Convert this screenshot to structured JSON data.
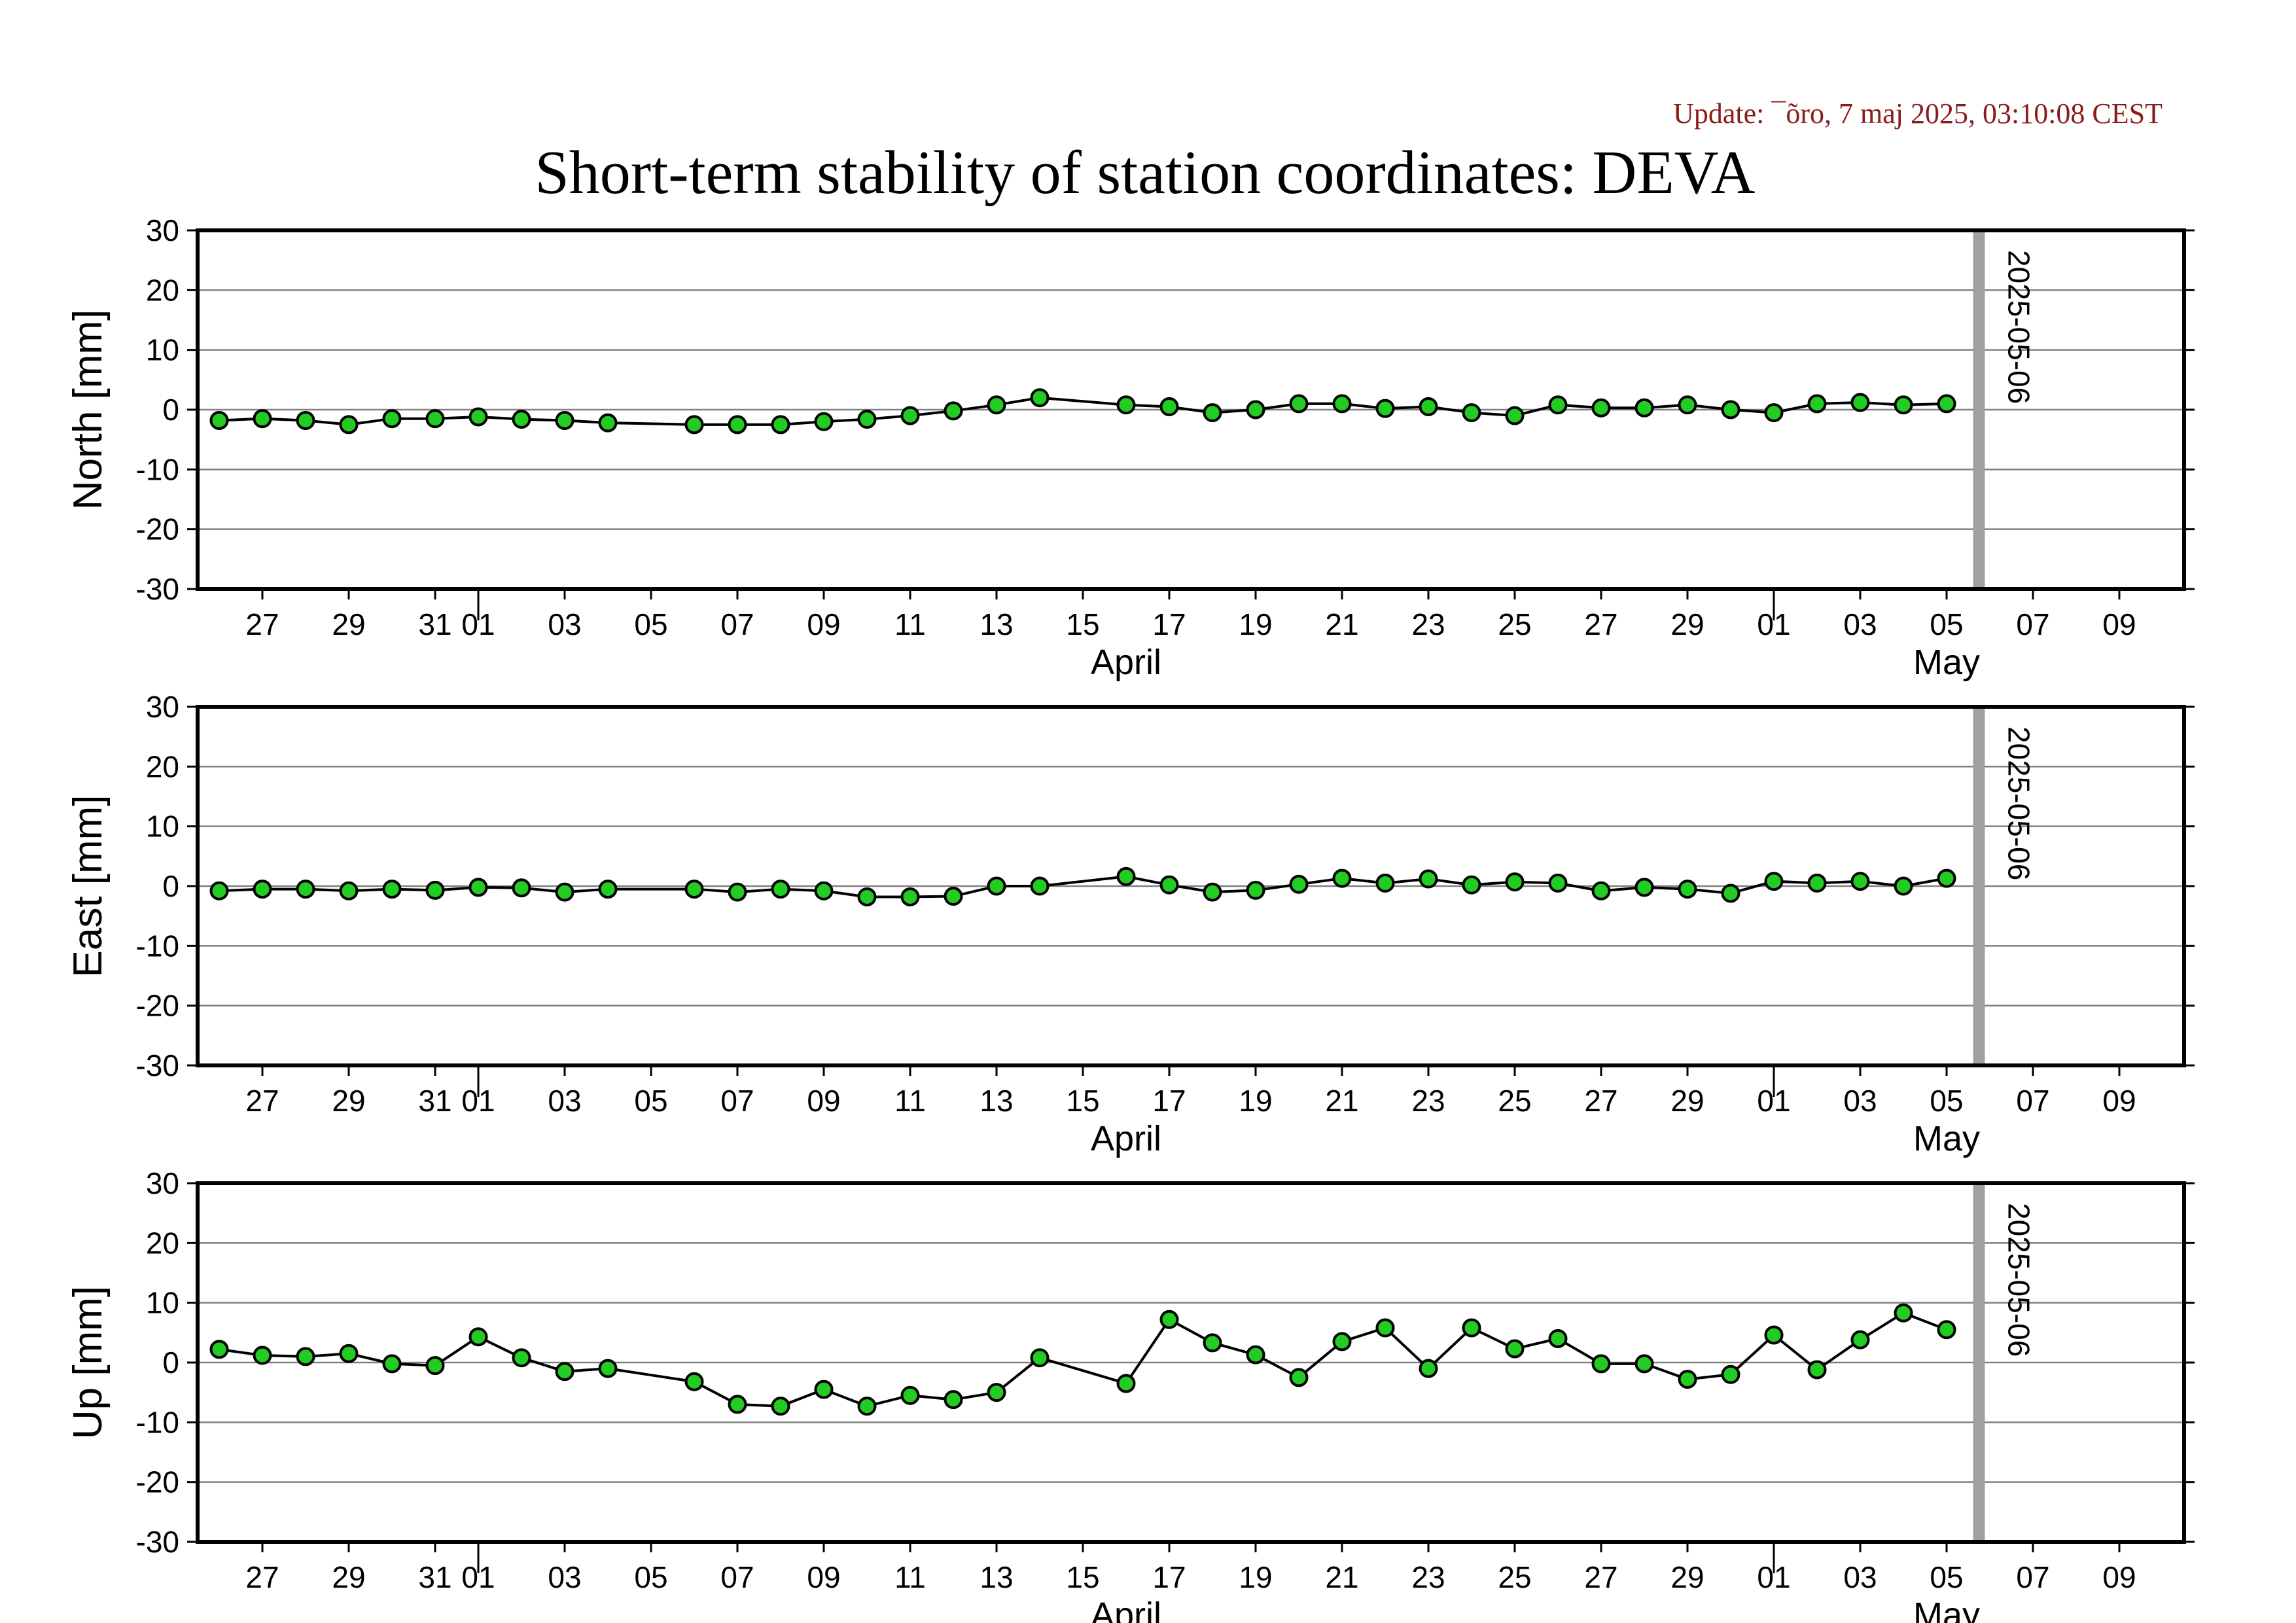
{
  "update_text": "Update: ¯õro, 7 maj 2025, 03:10:08 CEST",
  "chart_data": {
    "type": "line",
    "title": "Short-term stability of station coordinates: DEVA",
    "ylim": [
      -30,
      30
    ],
    "yticks": [
      30,
      20,
      10,
      0,
      -10,
      -20,
      -30
    ],
    "grid": true,
    "x_axis": {
      "tick_labels": [
        {
          "day": "2025-03-27",
          "label": "27"
        },
        {
          "day": "2025-03-29",
          "label": "29"
        },
        {
          "day": "2025-03-31",
          "label": "31"
        },
        {
          "day": "2025-04-01",
          "label": "01"
        },
        {
          "day": "2025-04-03",
          "label": "03"
        },
        {
          "day": "2025-04-05",
          "label": "05"
        },
        {
          "day": "2025-04-07",
          "label": "07"
        },
        {
          "day": "2025-04-09",
          "label": "09"
        },
        {
          "day": "2025-04-11",
          "label": "11"
        },
        {
          "day": "2025-04-13",
          "label": "13"
        },
        {
          "day": "2025-04-15",
          "label": "15"
        },
        {
          "day": "2025-04-17",
          "label": "17"
        },
        {
          "day": "2025-04-19",
          "label": "19"
        },
        {
          "day": "2025-04-21",
          "label": "21"
        },
        {
          "day": "2025-04-23",
          "label": "23"
        },
        {
          "day": "2025-04-25",
          "label": "25"
        },
        {
          "day": "2025-04-27",
          "label": "27"
        },
        {
          "day": "2025-04-29",
          "label": "29"
        },
        {
          "day": "2025-05-01",
          "label": "01"
        },
        {
          "day": "2025-05-03",
          "label": "03"
        },
        {
          "day": "2025-05-05",
          "label": "05"
        },
        {
          "day": "2025-05-07",
          "label": "07"
        },
        {
          "day": "2025-05-09",
          "label": "09"
        }
      ],
      "month_labels": [
        {
          "label": "April",
          "day": "2025-04-16"
        },
        {
          "label": "May",
          "day": "2025-05-05"
        }
      ],
      "range": [
        "2025-03-25T12:00",
        "2025-05-10T12:00"
      ]
    },
    "marker": {
      "label": "2025-05-06",
      "day": "2025-05-05T18:00",
      "color": "#a0a0a0"
    },
    "point_color": "#22cc22",
    "line_color": "#000000",
    "panels": [
      {
        "ylabel": "North [mm]",
        "points": [
          [
            "2025-03-26",
            -1.8
          ],
          [
            "2025-03-27",
            -1.5
          ],
          [
            "2025-03-28",
            -1.8
          ],
          [
            "2025-03-29",
            -2.5
          ],
          [
            "2025-03-30",
            -1.5
          ],
          [
            "2025-03-31",
            -1.5
          ],
          [
            "2025-04-01",
            -1.2
          ],
          [
            "2025-04-02",
            -1.6
          ],
          [
            "2025-04-03",
            -1.8
          ],
          [
            "2025-04-04",
            -2.2
          ],
          [
            "2025-04-06",
            -2.5
          ],
          [
            "2025-04-07",
            -2.5
          ],
          [
            "2025-04-08",
            -2.5
          ],
          [
            "2025-04-09",
            -2.0
          ],
          [
            "2025-04-10",
            -1.6
          ],
          [
            "2025-04-11",
            -1.0
          ],
          [
            "2025-04-12",
            -0.2
          ],
          [
            "2025-04-13",
            0.8
          ],
          [
            "2025-04-14",
            2.0
          ],
          [
            "2025-04-16",
            0.8
          ],
          [
            "2025-04-17",
            0.5
          ],
          [
            "2025-04-18",
            -0.5
          ],
          [
            "2025-04-19",
            0.0
          ],
          [
            "2025-04-20",
            1.0
          ],
          [
            "2025-04-21",
            1.0
          ],
          [
            "2025-04-22",
            0.2
          ],
          [
            "2025-04-23",
            0.5
          ],
          [
            "2025-04-24",
            -0.5
          ],
          [
            "2025-04-25",
            -1.0
          ],
          [
            "2025-04-26",
            0.8
          ],
          [
            "2025-04-27",
            0.3
          ],
          [
            "2025-04-28",
            0.3
          ],
          [
            "2025-04-29",
            0.8
          ],
          [
            "2025-04-30",
            0.0
          ],
          [
            "2025-05-01",
            -0.5
          ],
          [
            "2025-05-02",
            1.0
          ],
          [
            "2025-05-03",
            1.2
          ],
          [
            "2025-05-04",
            0.8
          ],
          [
            "2025-05-05",
            1.0
          ]
        ]
      },
      {
        "ylabel": "East [mm]",
        "points": [
          [
            "2025-03-26",
            -0.8
          ],
          [
            "2025-03-27",
            -0.5
          ],
          [
            "2025-03-28",
            -0.5
          ],
          [
            "2025-03-29",
            -0.8
          ],
          [
            "2025-03-30",
            -0.5
          ],
          [
            "2025-03-31",
            -0.7
          ],
          [
            "2025-04-01",
            -0.2
          ],
          [
            "2025-04-02",
            -0.3
          ],
          [
            "2025-04-03",
            -1.0
          ],
          [
            "2025-04-04",
            -0.5
          ],
          [
            "2025-04-06",
            -0.5
          ],
          [
            "2025-04-07",
            -1.0
          ],
          [
            "2025-04-08",
            -0.5
          ],
          [
            "2025-04-09",
            -0.8
          ],
          [
            "2025-04-10",
            -1.8
          ],
          [
            "2025-04-11",
            -1.8
          ],
          [
            "2025-04-12",
            -1.7
          ],
          [
            "2025-04-13",
            0.0
          ],
          [
            "2025-04-14",
            0.0
          ],
          [
            "2025-04-16",
            1.6
          ],
          [
            "2025-04-17",
            0.2
          ],
          [
            "2025-04-18",
            -1.0
          ],
          [
            "2025-04-19",
            -0.7
          ],
          [
            "2025-04-20",
            0.3
          ],
          [
            "2025-04-21",
            1.3
          ],
          [
            "2025-04-22",
            0.5
          ],
          [
            "2025-04-23",
            1.2
          ],
          [
            "2025-04-24",
            0.2
          ],
          [
            "2025-04-25",
            0.7
          ],
          [
            "2025-04-26",
            0.5
          ],
          [
            "2025-04-27",
            -0.8
          ],
          [
            "2025-04-28",
            -0.2
          ],
          [
            "2025-04-29",
            -0.5
          ],
          [
            "2025-04-30",
            -1.2
          ],
          [
            "2025-05-01",
            0.8
          ],
          [
            "2025-05-02",
            0.5
          ],
          [
            "2025-05-03",
            0.8
          ],
          [
            "2025-05-04",
            0.0
          ],
          [
            "2025-05-05",
            1.3
          ]
        ]
      },
      {
        "ylabel": "Up [mm]",
        "points": [
          [
            "2025-03-26",
            2.2
          ],
          [
            "2025-03-27",
            1.2
          ],
          [
            "2025-03-28",
            1.0
          ],
          [
            "2025-03-29",
            1.5
          ],
          [
            "2025-03-30",
            -0.2
          ],
          [
            "2025-03-31",
            -0.5
          ],
          [
            "2025-04-01",
            4.3
          ],
          [
            "2025-04-02",
            0.8
          ],
          [
            "2025-04-03",
            -1.5
          ],
          [
            "2025-04-04",
            -1.0
          ],
          [
            "2025-04-06",
            -3.2
          ],
          [
            "2025-04-07",
            -7.0
          ],
          [
            "2025-04-08",
            -7.3
          ],
          [
            "2025-04-09",
            -4.5
          ],
          [
            "2025-04-10",
            -7.3
          ],
          [
            "2025-04-11",
            -5.5
          ],
          [
            "2025-04-12",
            -6.2
          ],
          [
            "2025-04-13",
            -5.0
          ],
          [
            "2025-04-14",
            0.8
          ],
          [
            "2025-04-16",
            -3.5
          ],
          [
            "2025-04-17",
            7.2
          ],
          [
            "2025-04-18",
            3.3
          ],
          [
            "2025-04-19",
            1.3
          ],
          [
            "2025-04-20",
            -2.5
          ],
          [
            "2025-04-21",
            3.5
          ],
          [
            "2025-04-22",
            5.8
          ],
          [
            "2025-04-23",
            -1.0
          ],
          [
            "2025-04-24",
            5.8
          ],
          [
            "2025-04-25",
            2.3
          ],
          [
            "2025-04-26",
            4.0
          ],
          [
            "2025-04-27",
            -0.2
          ],
          [
            "2025-04-28",
            -0.2
          ],
          [
            "2025-04-29",
            -2.8
          ],
          [
            "2025-04-30",
            -2.0
          ],
          [
            "2025-05-01",
            4.6
          ],
          [
            "2025-05-02",
            -1.2
          ],
          [
            "2025-05-03",
            3.8
          ],
          [
            "2025-05-04",
            8.3
          ],
          [
            "2025-05-05",
            5.5
          ]
        ]
      }
    ]
  }
}
